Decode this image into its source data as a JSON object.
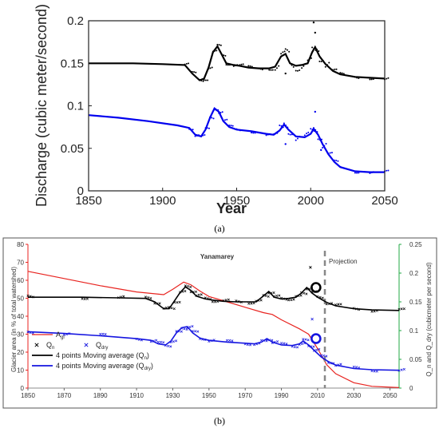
{
  "chart_data": [
    {
      "panel": "a",
      "type": "line",
      "caption": "(a)",
      "xlabel": "Year",
      "ylabel": "Discharge (cubic meter/second)",
      "xlim": [
        1850,
        2050
      ],
      "ylim": [
        0,
        0.2
      ],
      "xticks": [
        "1850",
        "1900",
        "1950",
        "2000",
        "2050"
      ],
      "yticks": [
        "0",
        "0.05",
        "0.1",
        "0.15",
        "0.2"
      ],
      "grid": false,
      "series": [
        {
          "color": "#000000",
          "points": [
            [
              1850,
              0.15
            ],
            [
              1880,
              0.15
            ],
            [
              1900,
              0.149
            ],
            [
              1915,
              0.148
            ],
            [
              1920,
              0.138
            ],
            [
              1925,
              0.13
            ],
            [
              1928,
              0.132
            ],
            [
              1931,
              0.145
            ],
            [
              1934,
              0.163
            ],
            [
              1937,
              0.17
            ],
            [
              1940,
              0.16
            ],
            [
              1943,
              0.15
            ],
            [
              1948,
              0.148
            ],
            [
              1952,
              0.147
            ],
            [
              1958,
              0.145
            ],
            [
              1965,
              0.144
            ],
            [
              1972,
              0.144
            ],
            [
              1976,
              0.146
            ],
            [
              1980,
              0.158
            ],
            [
              1983,
              0.161
            ],
            [
              1986,
              0.15
            ],
            [
              1990,
              0.147
            ],
            [
              1994,
              0.148
            ],
            [
              1998,
              0.15
            ],
            [
              2001,
              0.163
            ],
            [
              2003,
              0.169
            ],
            [
              2006,
              0.158
            ],
            [
              2010,
              0.149
            ],
            [
              2015,
              0.141
            ],
            [
              2020,
              0.137
            ],
            [
              2030,
              0.134
            ],
            [
              2040,
              0.133
            ],
            [
              2050,
              0.132
            ]
          ]
        },
        {
          "color": "#0000ee",
          "points": [
            [
              1850,
              0.089
            ],
            [
              1870,
              0.086
            ],
            [
              1890,
              0.082
            ],
            [
              1910,
              0.077
            ],
            [
              1918,
              0.074
            ],
            [
              1922,
              0.066
            ],
            [
              1926,
              0.064
            ],
            [
              1929,
              0.072
            ],
            [
              1932,
              0.086
            ],
            [
              1935,
              0.097
            ],
            [
              1938,
              0.093
            ],
            [
              1941,
              0.082
            ],
            [
              1945,
              0.075
            ],
            [
              1950,
              0.072
            ],
            [
              1960,
              0.07
            ],
            [
              1970,
              0.067
            ],
            [
              1975,
              0.066
            ],
            [
              1979,
              0.071
            ],
            [
              1982,
              0.078
            ],
            [
              1985,
              0.072
            ],
            [
              1990,
              0.064
            ],
            [
              1996,
              0.063
            ],
            [
              2000,
              0.067
            ],
            [
              2002,
              0.073
            ],
            [
              2005,
              0.066
            ],
            [
              2008,
              0.055
            ],
            [
              2012,
              0.043
            ],
            [
              2016,
              0.034
            ],
            [
              2020,
              0.028
            ],
            [
              2030,
              0.023
            ],
            [
              2040,
              0.022
            ],
            [
              2050,
              0.022
            ]
          ]
        }
      ]
    },
    {
      "panel": "b",
      "type": "line",
      "caption": "(b)",
      "title": "Yanamarey",
      "annotation": "Projection",
      "ylabel_left": "Glacier area (in % of total watershed)",
      "ylabel_right": "Q_n and Q_dry (cubicmeter per second)",
      "xlim": [
        1850,
        2055
      ],
      "ylim_left": [
        0,
        80
      ],
      "ylim_right": [
        0,
        0.25
      ],
      "xticks": [
        "1850",
        "1870",
        "1890",
        "1910",
        "1930",
        "1950",
        "1970",
        "1990",
        "2010",
        "2030",
        "2050"
      ],
      "yticks_left": [
        "0",
        "10",
        "20",
        "30",
        "40",
        "50",
        "60",
        "70",
        "80"
      ],
      "yticks_right": [
        "0",
        "0.05",
        "0.1",
        "0.15",
        "0.2",
        "0.25"
      ],
      "projection_year": 2014,
      "colors": {
        "glacier": "#e8231f",
        "qn": "#000000",
        "qdry": "#1515e0",
        "right_axis": "#22aa44",
        "projection_line": "#888888"
      },
      "legend": [
        {
          "label": "A",
          "sub": "gl"
        },
        {
          "label": "Q",
          "sub": "n"
        },
        {
          "label": "Q",
          "sub": "dry"
        },
        {
          "label": "4 points Moving average (Q",
          "sub": "n",
          "suffix": ")"
        },
        {
          "label": "4 points Moving average (Q",
          "sub": "dry",
          "suffix": ")"
        }
      ],
      "glacier_area": [
        [
          1850,
          65
        ],
        [
          1870,
          61
        ],
        [
          1890,
          57
        ],
        [
          1910,
          53.5
        ],
        [
          1925,
          52
        ],
        [
          1930,
          55
        ],
        [
          1936,
          59
        ],
        [
          1940,
          57.5
        ],
        [
          1945,
          54
        ],
        [
          1950,
          51
        ],
        [
          1960,
          48
        ],
        [
          1970,
          45
        ],
        [
          1980,
          42
        ],
        [
          1985,
          41
        ],
        [
          1990,
          38
        ],
        [
          2000,
          33
        ],
        [
          2005,
          30
        ],
        [
          2010,
          22
        ],
        [
          2015,
          13
        ],
        [
          2020,
          8
        ],
        [
          2030,
          3
        ],
        [
          2040,
          1
        ],
        [
          2050,
          0.5
        ],
        [
          2055,
          0.3
        ]
      ],
      "qn_points": [
        [
          1850,
          0.158
        ],
        [
          1880,
          0.158
        ],
        [
          1900,
          0.157
        ],
        [
          1915,
          0.156
        ],
        [
          1920,
          0.15
        ],
        [
          1925,
          0.138
        ],
        [
          1928,
          0.138
        ],
        [
          1931,
          0.152
        ],
        [
          1934,
          0.166
        ],
        [
          1937,
          0.176
        ],
        [
          1940,
          0.17
        ],
        [
          1943,
          0.16
        ],
        [
          1948,
          0.155
        ],
        [
          1952,
          0.153
        ],
        [
          1958,
          0.151
        ],
        [
          1965,
          0.15
        ],
        [
          1972,
          0.15
        ],
        [
          1976,
          0.15
        ],
        [
          1980,
          0.16
        ],
        [
          1983,
          0.168
        ],
        [
          1986,
          0.158
        ],
        [
          1990,
          0.155
        ],
        [
          1994,
          0.156
        ],
        [
          1998,
          0.158
        ],
        [
          2001,
          0.165
        ],
        [
          2004,
          0.175
        ],
        [
          2007,
          0.165
        ],
        [
          2010,
          0.158
        ],
        [
          2015,
          0.149
        ],
        [
          2020,
          0.143
        ],
        [
          2030,
          0.138
        ],
        [
          2040,
          0.136
        ],
        [
          2055,
          0.135
        ]
      ],
      "qdry_points": [
        [
          1850,
          0.098
        ],
        [
          1870,
          0.095
        ],
        [
          1890,
          0.091
        ],
        [
          1910,
          0.086
        ],
        [
          1918,
          0.083
        ],
        [
          1922,
          0.077
        ],
        [
          1926,
          0.075
        ],
        [
          1929,
          0.082
        ],
        [
          1932,
          0.096
        ],
        [
          1935,
          0.105
        ],
        [
          1938,
          0.107
        ],
        [
          1941,
          0.096
        ],
        [
          1945,
          0.087
        ],
        [
          1950,
          0.083
        ],
        [
          1960,
          0.08
        ],
        [
          1970,
          0.078
        ],
        [
          1975,
          0.077
        ],
        [
          1979,
          0.08
        ],
        [
          1982,
          0.086
        ],
        [
          1985,
          0.08
        ],
        [
          1990,
          0.075
        ],
        [
          1996,
          0.074
        ],
        [
          2000,
          0.077
        ],
        [
          2002,
          0.082
        ],
        [
          2005,
          0.075
        ],
        [
          2008,
          0.066
        ],
        [
          2012,
          0.054
        ],
        [
          2016,
          0.046
        ],
        [
          2020,
          0.04
        ],
        [
          2030,
          0.034
        ],
        [
          2040,
          0.032
        ],
        [
          2055,
          0.031
        ]
      ],
      "highlight_circles": [
        [
          2006,
          0.175
        ],
        [
          2006,
          0.086
        ]
      ]
    }
  ]
}
